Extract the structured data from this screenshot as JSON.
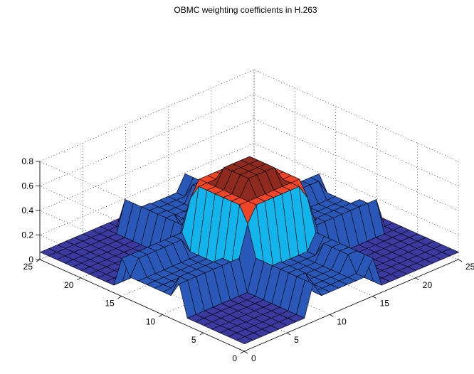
{
  "chart_data": {
    "type": "surface",
    "title": "OBMC weighting coefficients in H.263",
    "xlabel": "",
    "ylabel": "",
    "zlabel": "",
    "x_ticks": [
      0,
      5,
      10,
      15,
      20,
      25
    ],
    "y_ticks": [
      0,
      5,
      10,
      15,
      20,
      25
    ],
    "z_ticks": [
      0,
      0.2,
      0.4,
      0.6,
      0.8
    ],
    "x_tick_labels": [
      "0",
      "5",
      "10",
      "15",
      "20",
      "25"
    ],
    "y_tick_labels": [
      "0",
      "5",
      "10",
      "15",
      "20",
      "25"
    ],
    "z_tick_labels": [
      "0",
      "0.2",
      "0.4",
      "0.6",
      "0.8"
    ],
    "xlim": [
      0,
      25
    ],
    "ylim": [
      0,
      25
    ],
    "zlim": [
      0,
      0.8
    ],
    "grid": true,
    "grid_size": 24,
    "window_block": [
      8,
      23
    ],
    "center_weights": [
      [
        4,
        5,
        5,
        5,
        5,
        5,
        5,
        4
      ],
      [
        5,
        5,
        5,
        5,
        5,
        5,
        5,
        5
      ],
      [
        5,
        5,
        6,
        6,
        6,
        6,
        5,
        5
      ],
      [
        5,
        5,
        6,
        6,
        6,
        6,
        5,
        5
      ],
      [
        5,
        5,
        6,
        6,
        6,
        6,
        5,
        5
      ],
      [
        5,
        5,
        6,
        6,
        6,
        6,
        5,
        5
      ],
      [
        5,
        5,
        5,
        5,
        5,
        5,
        5,
        5
      ],
      [
        4,
        5,
        5,
        5,
        5,
        5,
        5,
        4
      ]
    ],
    "top_weights": [
      [
        2,
        2,
        2,
        2,
        2,
        2,
        2,
        2
      ],
      [
        1,
        1,
        2,
        2,
        2,
        2,
        1,
        1
      ],
      [
        1,
        1,
        1,
        1,
        1,
        1,
        1,
        1
      ],
      [
        1,
        1,
        1,
        1,
        1,
        1,
        1,
        1
      ],
      [
        1,
        1,
        1,
        1,
        1,
        1,
        1,
        1
      ],
      [
        1,
        1,
        1,
        1,
        1,
        1,
        1,
        1
      ],
      [
        1,
        1,
        2,
        2,
        2,
        2,
        1,
        1
      ],
      [
        2,
        2,
        2,
        2,
        2,
        2,
        2,
        2
      ]
    ],
    "left_weights": [
      [
        2,
        1,
        1,
        1,
        1,
        1,
        1,
        2
      ],
      [
        2,
        2,
        1,
        1,
        1,
        1,
        2,
        2
      ],
      [
        2,
        2,
        1,
        1,
        1,
        1,
        2,
        2
      ],
      [
        2,
        2,
        1,
        1,
        1,
        1,
        2,
        2
      ],
      [
        2,
        2,
        1,
        1,
        1,
        1,
        2,
        2
      ],
      [
        2,
        2,
        1,
        1,
        1,
        1,
        2,
        2
      ],
      [
        2,
        2,
        1,
        1,
        1,
        1,
        2,
        2
      ],
      [
        2,
        1,
        1,
        1,
        1,
        1,
        1,
        2
      ]
    ],
    "weight_divisor": 8,
    "colormap": {
      "bands": [
        0.0,
        0.1,
        0.3,
        0.5,
        0.65
      ],
      "colors": [
        "#3a3aa0",
        "#2a58b8",
        "#12b4ec",
        "#ee4528",
        "#8f2a1e"
      ],
      "peak_color": "#f6c51c"
    }
  }
}
